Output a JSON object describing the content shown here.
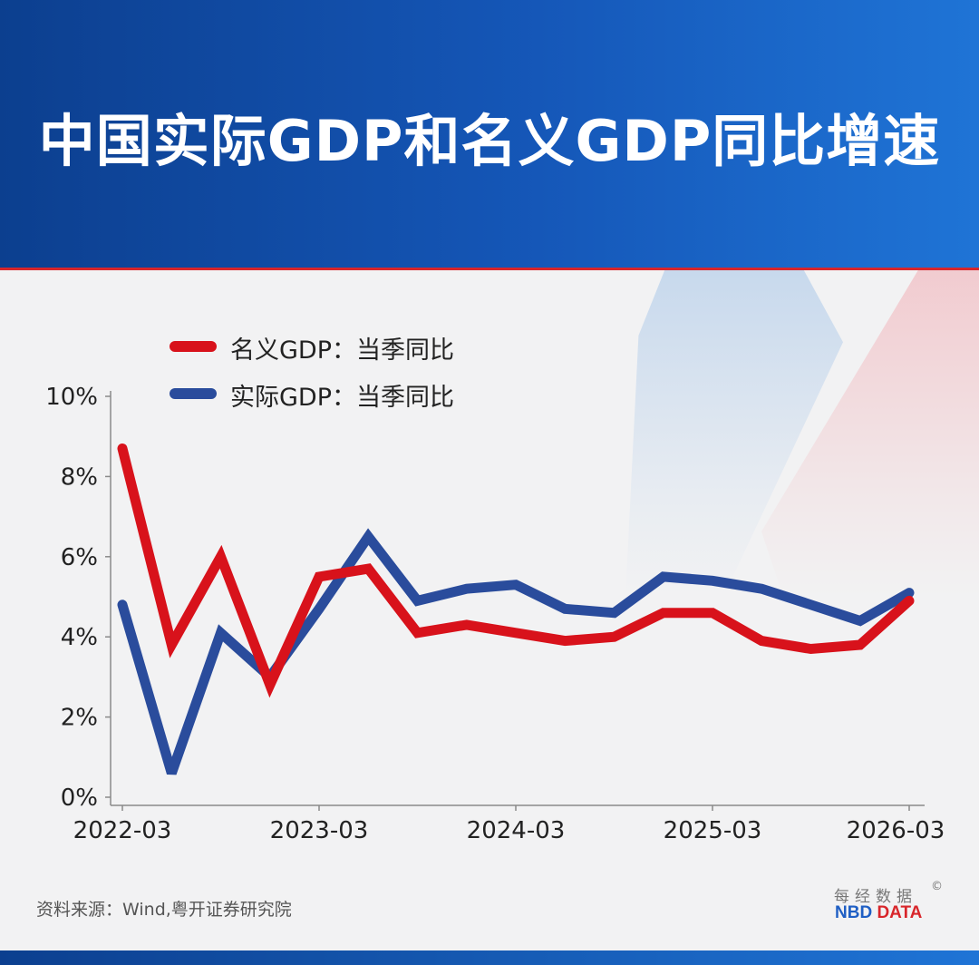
{
  "header": {
    "title": "中国实际GDP和名义GDP同比增速"
  },
  "colors": {
    "nominal": "#d8121b",
    "real": "#2a4c9c",
    "header": "#1557b8"
  },
  "chart_data": {
    "type": "line",
    "title": "中国实际GDP和名义GDP同比增速",
    "x": [
      "2022-03",
      "2022-06",
      "2022-09",
      "2022-12",
      "2023-03",
      "2023-06",
      "2023-09",
      "2023-12",
      "2024-03",
      "2024-06",
      "2024-09",
      "2024-12",
      "2025-03",
      "2025-06",
      "2025-09",
      "2025-12",
      "2026-03"
    ],
    "x_tick_labels": [
      "2022-03",
      "2023-03",
      "2024-03",
      "2025-03",
      "2026-03"
    ],
    "y_tick_labels": [
      "0%",
      "2%",
      "4%",
      "6%",
      "8%",
      "10%"
    ],
    "ylim": [
      0,
      10
    ],
    "grid": false,
    "legend_position": "top-left",
    "series": [
      {
        "name": "名义GDP：当季同比",
        "values": [
          8.7,
          3.8,
          6.0,
          2.8,
          5.5,
          5.7,
          4.1,
          4.3,
          4.1,
          3.9,
          4.0,
          4.6,
          4.6,
          3.9,
          3.7,
          3.8,
          4.9
        ]
      },
      {
        "name": "实际GDP：当季同比",
        "values": [
          4.8,
          0.6,
          4.1,
          3.0,
          4.7,
          6.5,
          4.9,
          5.2,
          5.3,
          4.7,
          4.6,
          5.5,
          5.4,
          5.2,
          4.8,
          4.4,
          5.1
        ]
      }
    ]
  },
  "footer": {
    "source": "资料来源：Wind,粤开证券研究院",
    "brand_cn": "每经数据",
    "brand_copyright": "©",
    "brand_nbd": "NBD",
    "brand_data": "DATA"
  }
}
